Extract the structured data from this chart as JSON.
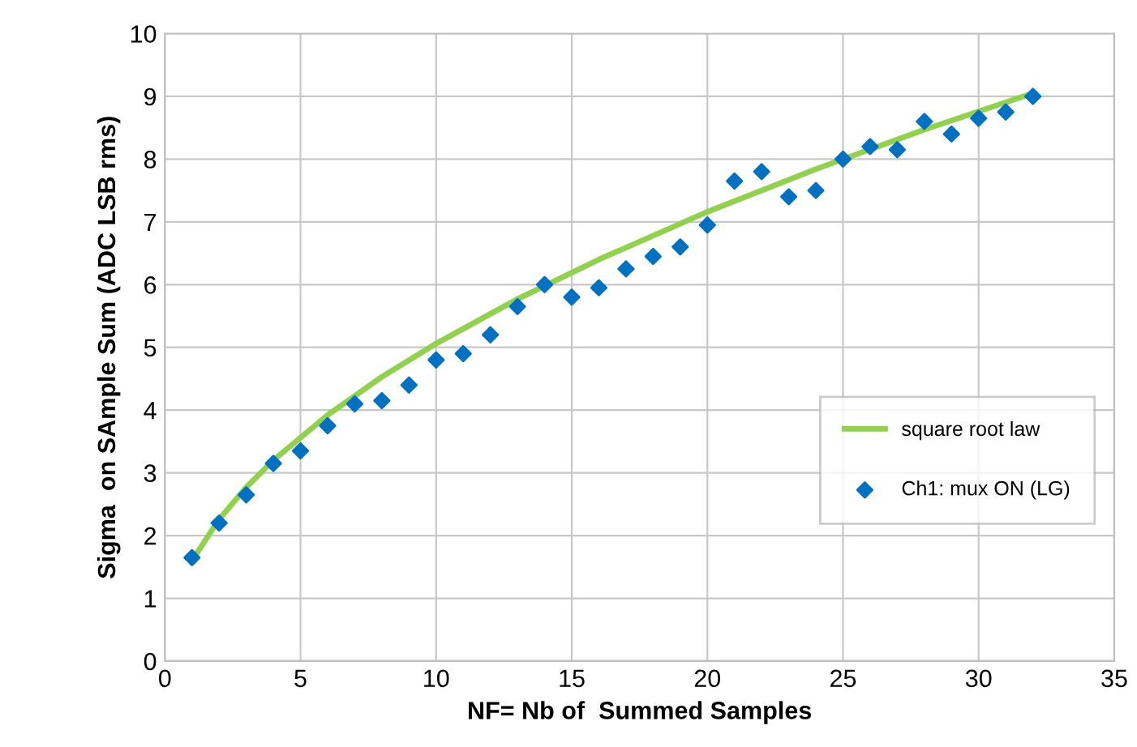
{
  "chart_data": {
    "type": "scatter",
    "xlabel": "NF= Nb of  Summed Samples",
    "ylabel": "Sigma  on SAmple Sum (ADC LSB rms)",
    "xlim": [
      0,
      35
    ],
    "xticks": [
      0,
      5,
      10,
      15,
      20,
      25,
      30,
      35
    ],
    "ylim": [
      0,
      10
    ],
    "yticks": [
      0,
      1,
      2,
      3,
      4,
      5,
      6,
      7,
      8,
      9,
      10
    ],
    "grid": true,
    "legend": "right",
    "series": [
      {
        "name": "square root law",
        "type": "line",
        "color": "#92d050",
        "marker": "none",
        "line_style": "solid",
        "x": [
          1,
          2,
          3,
          4,
          6,
          8,
          10,
          13,
          16,
          20,
          24,
          28,
          32
        ],
        "values": [
          1.6,
          2.26,
          2.77,
          3.2,
          3.92,
          4.53,
          5.06,
          5.77,
          6.4,
          7.16,
          7.84,
          8.47,
          9.05
        ]
      },
      {
        "name": "Ch1: mux ON (LG)",
        "color": "#0070c0",
        "marker": "diamond",
        "x": [
          1,
          2,
          3,
          4,
          5,
          6,
          7,
          8,
          9,
          10,
          11,
          12,
          13,
          14,
          15,
          16,
          17,
          18,
          19,
          20,
          21,
          22,
          23,
          24,
          25,
          26,
          27,
          28,
          29,
          30,
          31,
          32
        ],
        "values": [
          1.65,
          2.2,
          2.65,
          3.15,
          3.35,
          3.75,
          4.1,
          4.15,
          4.4,
          4.8,
          4.9,
          5.2,
          5.65,
          6.0,
          5.8,
          5.95,
          6.25,
          6.45,
          6.6,
          6.95,
          7.65,
          7.8,
          7.4,
          7.5,
          8.0,
          8.2,
          8.15,
          8.6,
          8.4,
          8.65,
          8.75,
          9.0
        ]
      }
    ]
  }
}
